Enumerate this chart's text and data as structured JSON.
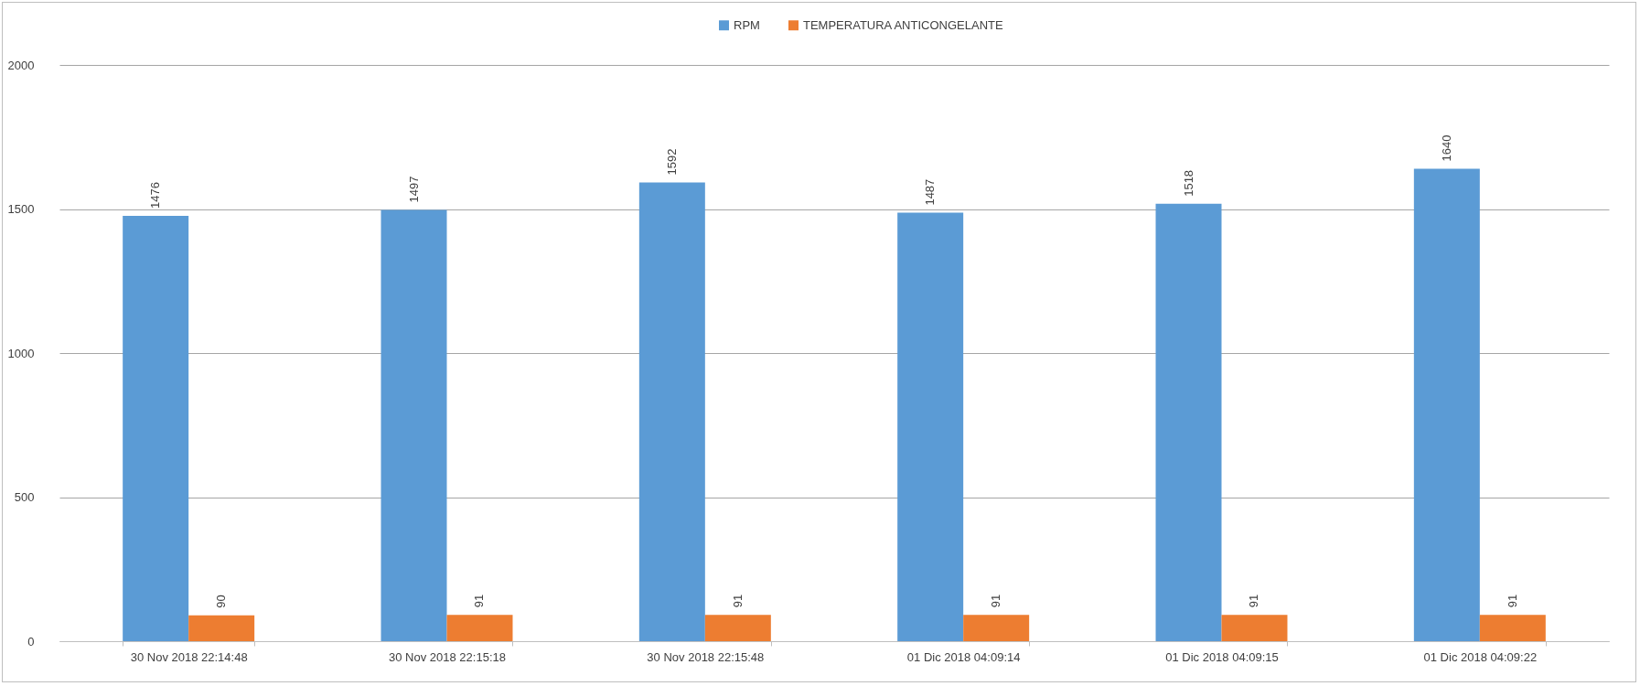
{
  "chart_data": {
    "type": "bar",
    "categories": [
      "30 Nov 2018 22:14:48",
      "30 Nov 2018 22:15:18",
      "30 Nov 2018 22:15:48",
      "01 Dic 2018 04:09:14",
      "01 Dic 2018 04:09:15",
      "01 Dic 2018 04:09:22"
    ],
    "series": [
      {
        "name": "RPM",
        "color": "#5b9bd5",
        "values": [
          1476,
          1497,
          1592,
          1487,
          1518,
          1640
        ]
      },
      {
        "name": "TEMPERATURA ANTICONGELANTE",
        "color": "#ed7d31",
        "values": [
          90,
          91,
          91,
          91,
          91,
          91
        ]
      }
    ],
    "ylim": [
      0,
      2000
    ],
    "yticks": [
      0,
      500,
      1000,
      1500,
      2000
    ],
    "grid": "y",
    "legend": "top",
    "data_labels": true
  }
}
